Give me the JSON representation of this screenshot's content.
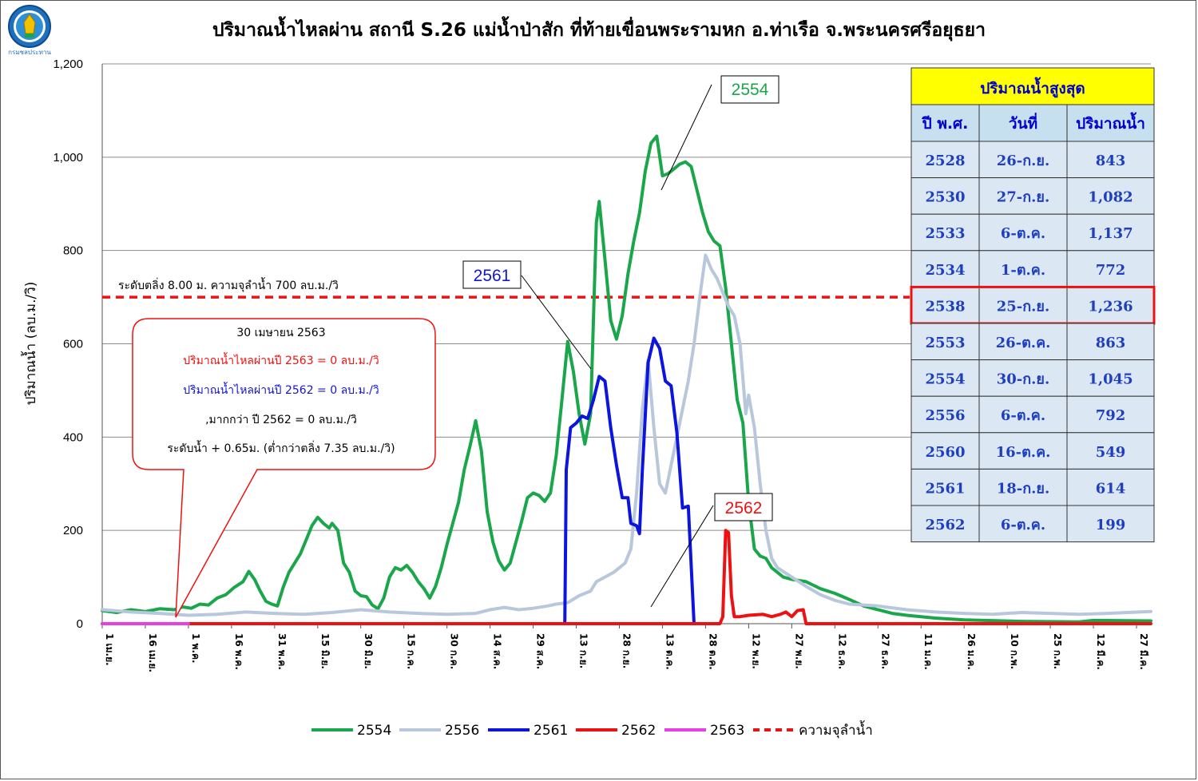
{
  "title": "ปริมาณน้ำไหลผ่าน สถานี S.26 แม่น้ำป่าสัก ที่ท้ายเขื่อนพระรามหก อ.ท่าเรือ จ.พระนครศรีอยุธยา",
  "logo": {
    "icon": "royal-irrigation-department-logo",
    "text": "กรมชลประทาน"
  },
  "chart_data": {
    "type": "line",
    "title": "ปริมาณน้ำไหลผ่าน สถานี S.26 แม่น้ำป่าสัก ที่ท้ายเขื่อนพระรามหก อ.ท่าเรือ จ.พระนครศรีอยุธยา",
    "ylabel": "ปริมาณน้ำ (ลบ.ม./วิ)",
    "xlabel": "",
    "ylim": [
      0,
      1200
    ],
    "yticks": [
      "0",
      "200",
      "400",
      "600",
      "800",
      "1,000",
      "1,200"
    ],
    "grid": "horizontal",
    "legend_position": "bottom",
    "x_range": [
      0,
      365
    ],
    "x_ticks": [
      {
        "x": 0,
        "label": "1 เม.ย."
      },
      {
        "x": 15,
        "label": "16 เม.ย."
      },
      {
        "x": 30,
        "label": "1 พ.ค."
      },
      {
        "x": 45,
        "label": "16 พ.ค."
      },
      {
        "x": 60,
        "label": "31 พ.ค."
      },
      {
        "x": 75,
        "label": "15 มิ.ย."
      },
      {
        "x": 90,
        "label": "30 มิ.ย."
      },
      {
        "x": 105,
        "label": "15 ก.ค."
      },
      {
        "x": 120,
        "label": "30 ก.ค."
      },
      {
        "x": 135,
        "label": "14 ส.ค."
      },
      {
        "x": 150,
        "label": "29 ส.ค."
      },
      {
        "x": 165,
        "label": "13 ก.ย."
      },
      {
        "x": 180,
        "label": "28 ก.ย."
      },
      {
        "x": 195,
        "label": "13 ต.ค."
      },
      {
        "x": 210,
        "label": "28 ต.ค."
      },
      {
        "x": 225,
        "label": "12 พ.ย."
      },
      {
        "x": 240,
        "label": "27 พ.ย."
      },
      {
        "x": 255,
        "label": "12 ธ.ค."
      },
      {
        "x": 270,
        "label": "27 ธ.ค."
      },
      {
        "x": 285,
        "label": "11 ม.ค."
      },
      {
        "x": 300,
        "label": "26 ม.ค."
      },
      {
        "x": 315,
        "label": "10 ก.พ."
      },
      {
        "x": 330,
        "label": "25 ก.พ."
      },
      {
        "x": 345,
        "label": "12 มี.ค."
      },
      {
        "x": 360,
        "label": "27 มี.ค."
      }
    ],
    "threshold": {
      "value": 700,
      "color": "#ee1111",
      "label": "ระดับตลิ่ง 8.00 ม. ความจุลำน้ำ 700 ลบ.ม./วิ",
      "legend": "ความจุลำน้ำ"
    },
    "series": [
      {
        "name": "2554",
        "color": "#1aa64a",
        "width": 4,
        "points": [
          [
            0,
            28
          ],
          [
            5,
            24
          ],
          [
            10,
            30
          ],
          [
            15,
            26
          ],
          [
            20,
            32
          ],
          [
            25,
            30
          ],
          [
            28,
            36
          ],
          [
            31,
            33
          ],
          [
            34,
            42
          ],
          [
            37,
            40
          ],
          [
            40,
            55
          ],
          [
            43,
            62
          ],
          [
            46,
            78
          ],
          [
            49,
            90
          ],
          [
            51,
            112
          ],
          [
            53,
            95
          ],
          [
            55,
            70
          ],
          [
            57,
            48
          ],
          [
            59,
            42
          ],
          [
            61,
            38
          ],
          [
            63,
            78
          ],
          [
            65,
            110
          ],
          [
            67,
            130
          ],
          [
            69,
            150
          ],
          [
            71,
            180
          ],
          [
            73,
            210
          ],
          [
            75,
            228
          ],
          [
            77,
            215
          ],
          [
            79,
            205
          ],
          [
            80,
            215
          ],
          [
            82,
            200
          ],
          [
            84,
            130
          ],
          [
            86,
            110
          ],
          [
            88,
            70
          ],
          [
            90,
            60
          ],
          [
            92,
            58
          ],
          [
            94,
            40
          ],
          [
            96,
            32
          ],
          [
            98,
            55
          ],
          [
            100,
            100
          ],
          [
            102,
            120
          ],
          [
            104,
            115
          ],
          [
            106,
            125
          ],
          [
            108,
            110
          ],
          [
            110,
            90
          ],
          [
            112,
            75
          ],
          [
            114,
            55
          ],
          [
            116,
            80
          ],
          [
            118,
            120
          ],
          [
            120,
            170
          ],
          [
            122,
            215
          ],
          [
            124,
            260
          ],
          [
            126,
            330
          ],
          [
            128,
            380
          ],
          [
            130,
            435
          ],
          [
            132,
            370
          ],
          [
            134,
            240
          ],
          [
            136,
            175
          ],
          [
            138,
            135
          ],
          [
            140,
            115
          ],
          [
            142,
            130
          ],
          [
            144,
            175
          ],
          [
            146,
            220
          ],
          [
            148,
            270
          ],
          [
            150,
            280
          ],
          [
            152,
            275
          ],
          [
            154,
            262
          ],
          [
            156,
            280
          ],
          [
            158,
            360
          ],
          [
            160,
            480
          ],
          [
            162,
            605
          ],
          [
            164,
            540
          ],
          [
            166,
            450
          ],
          [
            168,
            385
          ],
          [
            170,
            450
          ],
          [
            172,
            860
          ],
          [
            173,
            905
          ],
          [
            175,
            780
          ],
          [
            177,
            650
          ],
          [
            179,
            610
          ],
          [
            181,
            660
          ],
          [
            183,
            750
          ],
          [
            185,
            820
          ],
          [
            187,
            880
          ],
          [
            189,
            970
          ],
          [
            191,
            1030
          ],
          [
            193,
            1045
          ],
          [
            195,
            960
          ],
          [
            197,
            965
          ],
          [
            199,
            975
          ],
          [
            201,
            985
          ],
          [
            203,
            990
          ],
          [
            205,
            980
          ],
          [
            207,
            930
          ],
          [
            209,
            880
          ],
          [
            211,
            840
          ],
          [
            213,
            820
          ],
          [
            215,
            810
          ],
          [
            217,
            720
          ],
          [
            219,
            600
          ],
          [
            221,
            480
          ],
          [
            223,
            430
          ],
          [
            225,
            260
          ],
          [
            227,
            160
          ],
          [
            229,
            145
          ],
          [
            231,
            140
          ],
          [
            233,
            120
          ],
          [
            235,
            110
          ],
          [
            237,
            100
          ],
          [
            240,
            95
          ],
          [
            245,
            90
          ],
          [
            250,
            75
          ],
          [
            255,
            65
          ],
          [
            260,
            52
          ],
          [
            265,
            38
          ],
          [
            270,
            30
          ],
          [
            275,
            22
          ],
          [
            280,
            18
          ],
          [
            290,
            12
          ],
          [
            300,
            8
          ],
          [
            320,
            5
          ],
          [
            340,
            4
          ],
          [
            345,
            7
          ],
          [
            365,
            6
          ]
        ]
      },
      {
        "name": "2556",
        "color": "#b8c7dc",
        "width": 4,
        "points": [
          [
            0,
            30
          ],
          [
            10,
            25
          ],
          [
            20,
            22
          ],
          [
            30,
            18
          ],
          [
            40,
            20
          ],
          [
            50,
            25
          ],
          [
            60,
            22
          ],
          [
            70,
            20
          ],
          [
            80,
            24
          ],
          [
            90,
            30
          ],
          [
            100,
            25
          ],
          [
            110,
            22
          ],
          [
            120,
            20
          ],
          [
            130,
            22
          ],
          [
            135,
            30
          ],
          [
            140,
            35
          ],
          [
            145,
            30
          ],
          [
            150,
            33
          ],
          [
            155,
            38
          ],
          [
            158,
            42
          ],
          [
            162,
            45
          ],
          [
            166,
            60
          ],
          [
            170,
            70
          ],
          [
            172,
            90
          ],
          [
            175,
            100
          ],
          [
            178,
            110
          ],
          [
            180,
            120
          ],
          [
            182,
            130
          ],
          [
            184,
            160
          ],
          [
            186,
            280
          ],
          [
            188,
            460
          ],
          [
            190,
            565
          ],
          [
            192,
            420
          ],
          [
            194,
            300
          ],
          [
            196,
            280
          ],
          [
            198,
            340
          ],
          [
            200,
            400
          ],
          [
            202,
            460
          ],
          [
            204,
            520
          ],
          [
            206,
            600
          ],
          [
            208,
            700
          ],
          [
            210,
            790
          ],
          [
            212,
            760
          ],
          [
            214,
            740
          ],
          [
            216,
            710
          ],
          [
            218,
            680
          ],
          [
            220,
            660
          ],
          [
            222,
            600
          ],
          [
            224,
            450
          ],
          [
            225,
            490
          ],
          [
            227,
            420
          ],
          [
            229,
            300
          ],
          [
            231,
            200
          ],
          [
            233,
            140
          ],
          [
            235,
            120
          ],
          [
            240,
            100
          ],
          [
            245,
            80
          ],
          [
            250,
            62
          ],
          [
            255,
            50
          ],
          [
            260,
            42
          ],
          [
            270,
            38
          ],
          [
            280,
            30
          ],
          [
            290,
            25
          ],
          [
            300,
            22
          ],
          [
            310,
            20
          ],
          [
            320,
            24
          ],
          [
            330,
            22
          ],
          [
            340,
            20
          ],
          [
            350,
            22
          ],
          [
            365,
            26
          ]
        ]
      },
      {
        "name": "2561",
        "color": "#0b15de",
        "width": 4,
        "points": [
          [
            161,
            0
          ],
          [
            161.5,
            330
          ],
          [
            163,
            420
          ],
          [
            165,
            430
          ],
          [
            167,
            445
          ],
          [
            169,
            440
          ],
          [
            171,
            480
          ],
          [
            173,
            530
          ],
          [
            175,
            520
          ],
          [
            177,
            420
          ],
          [
            179,
            340
          ],
          [
            181,
            270
          ],
          [
            183,
            270
          ],
          [
            184,
            215
          ],
          [
            186,
            210
          ],
          [
            187,
            193
          ],
          [
            188,
            330
          ],
          [
            190,
            560
          ],
          [
            192,
            612
          ],
          [
            194,
            590
          ],
          [
            196,
            520
          ],
          [
            198,
            510
          ],
          [
            200,
            410
          ],
          [
            202,
            248
          ],
          [
            204,
            252
          ],
          [
            206,
            0
          ]
        ]
      },
      {
        "name": "2562",
        "color": "#ee1111",
        "width": 4,
        "points": [
          [
            0,
            0
          ],
          [
            215,
            0
          ],
          [
            216,
            15
          ],
          [
            217,
            200
          ],
          [
            218,
            195
          ],
          [
            219,
            60
          ],
          [
            220,
            15
          ],
          [
            222,
            15
          ],
          [
            225,
            18
          ],
          [
            230,
            20
          ],
          [
            233,
            15
          ],
          [
            236,
            20
          ],
          [
            238,
            25
          ],
          [
            240,
            15
          ],
          [
            242,
            28
          ],
          [
            244,
            30
          ],
          [
            245,
            0
          ],
          [
            365,
            0
          ]
        ]
      },
      {
        "name": "2563",
        "color": "#e83ee6",
        "width": 4,
        "points": [
          [
            0,
            0
          ],
          [
            30,
            0
          ]
        ]
      }
    ]
  },
  "callout": {
    "line1": "30 เมษายน 2563",
    "line2": "ปริมาณน้ำไหลผ่านปี 2563   =   0   ลบ.ม./วิ",
    "line3": "ปริมาณน้ำไหลผ่านปี 2562   =   0   ลบ.ม./วิ",
    "line4": ",มากกว่า ปี 2562 =  0  ลบ.ม./วิ",
    "line5": "ระดับน้ำ + 0.65ม. (ต่ำกว่าตลิ่ง 7.35  ลบ.ม./วิ)",
    "colors": {
      "line1": "#000000",
      "line2": "#ee1111",
      "line3": "#1515cc",
      "line4": "#000000",
      "line5": "#000000",
      "border": "#ee1111"
    }
  },
  "tags": [
    {
      "text": "2554",
      "color": "#1aa64a"
    },
    {
      "text": "2561",
      "color": "#1515cc"
    },
    {
      "text": "2562",
      "color": "#ee1111"
    }
  ],
  "max_table": {
    "title": "ปริมาณน้ำสูงสุด",
    "title_bg": "#ffff00",
    "headers": [
      "ปี พ.ศ.",
      "วันที่",
      "ปริมาณน้ำ"
    ],
    "header_bg": "#c6e0f0",
    "highlight_row": 4,
    "highlight_color": "#ee1111",
    "rows": [
      [
        "2528",
        "26-ก.ย.",
        "843"
      ],
      [
        "2530",
        "27-ก.ย.",
        "1,082"
      ],
      [
        "2533",
        "6-ต.ค.",
        "1,137"
      ],
      [
        "2534",
        "1-ต.ค.",
        "772"
      ],
      [
        "2538",
        "25-ก.ย.",
        "1,236"
      ],
      [
        "2553",
        "26-ต.ค.",
        "863"
      ],
      [
        "2554",
        "30-ก.ย.",
        "1,045"
      ],
      [
        "2556",
        "6-ต.ค.",
        "792"
      ],
      [
        "2560",
        "16-ต.ค.",
        "549"
      ],
      [
        "2561",
        "18-ก.ย.",
        "614"
      ],
      [
        "2562",
        "6-ต.ค.",
        "199"
      ]
    ]
  },
  "legend": {
    "items": [
      {
        "label": "2554",
        "color": "#1aa64a",
        "dashed": false
      },
      {
        "label": "2556",
        "color": "#b8c7dc",
        "dashed": false
      },
      {
        "label": "2561",
        "color": "#0b15de",
        "dashed": false
      },
      {
        "label": "2562",
        "color": "#ee1111",
        "dashed": false
      },
      {
        "label": "2563",
        "color": "#e83ee6",
        "dashed": false
      },
      {
        "label": "ความจุลำน้ำ",
        "color": "#ee1111",
        "dashed": true
      }
    ]
  }
}
